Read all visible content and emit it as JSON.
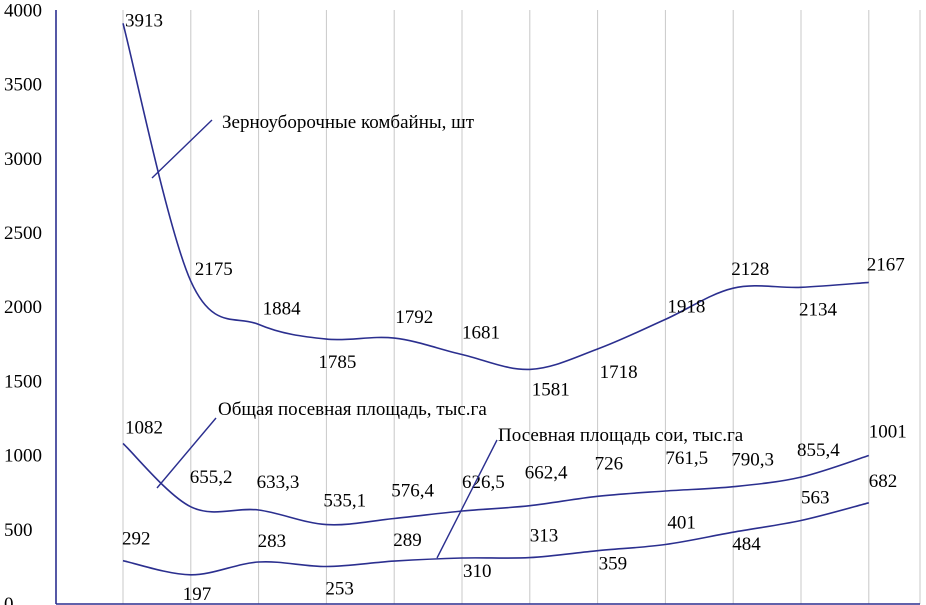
{
  "chart_data": {
    "type": "line",
    "title": "",
    "xlabel": "",
    "ylabel": "",
    "ylim": [
      0,
      4000
    ],
    "yticks": [
      "0",
      "500",
      "1000",
      "1500",
      "2000",
      "2500",
      "3000",
      "3500",
      "4000"
    ],
    "grid": true,
    "legend": "inline labels with leader lines",
    "line_color": "#2b2f8f",
    "series": [
      {
        "name": "Зерноуборочные комбайны, шт",
        "values": [
          3913,
          2175,
          1884,
          1785,
          1792,
          1681,
          1581,
          1718,
          1918,
          2128,
          2134,
          2167
        ],
        "labels": [
          "3913",
          "2175",
          "1884",
          "1785",
          "1792",
          "1681",
          "1581",
          "1718",
          "1918",
          "2128",
          "2134",
          "2167"
        ]
      },
      {
        "name": "Общая посевная площадь, тыс.га",
        "values": [
          1082,
          655.2,
          633.3,
          535.1,
          576.4,
          626.5,
          662.4,
          726,
          761.5,
          790.3,
          855.4,
          1001
        ],
        "labels": [
          "1082",
          "655,2",
          "633,3",
          "535,1",
          "576,4",
          "626,5",
          "662,4",
          "726",
          "761,5",
          "790,3",
          "855,4",
          "1001"
        ]
      },
      {
        "name": "Посевная площадь сои, тыс.га",
        "values": [
          292,
          197,
          283,
          253,
          289,
          310,
          313,
          359,
          401,
          484,
          563,
          682
        ],
        "labels": [
          "292",
          "197",
          "283",
          "253",
          "289",
          "310",
          "313",
          "359",
          "401",
          "484",
          "563",
          "682"
        ]
      }
    ]
  }
}
